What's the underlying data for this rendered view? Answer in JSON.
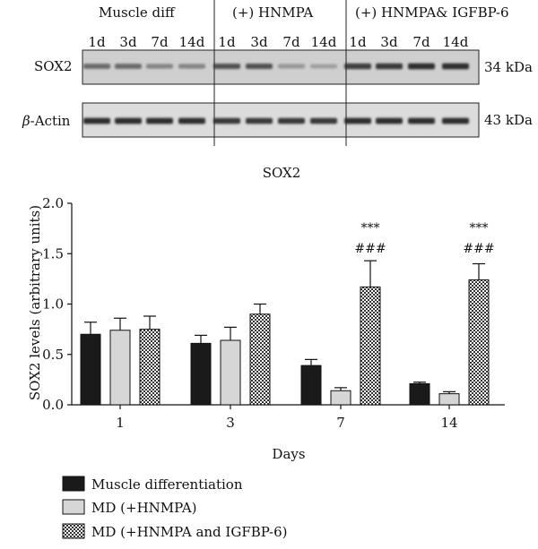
{
  "blot": {
    "groups": [
      "Muscle diff",
      "(+) HNMPA",
      "(+) HNMPA& IGFBP-6"
    ],
    "lanes": [
      "1d",
      "3d",
      "7d",
      "14d",
      "1d",
      "3d",
      "7d",
      "14d",
      "1d",
      "3d",
      "7d",
      "14d"
    ],
    "rows": [
      {
        "label": "SOX2",
        "size": "34 kDa",
        "band_intensity": [
          0.55,
          0.55,
          0.4,
          0.4,
          0.7,
          0.7,
          0.3,
          0.25,
          0.8,
          0.85,
          0.9,
          0.9
        ]
      },
      {
        "label_prefix": "β",
        "label": "-Actin",
        "size": "43 kDa",
        "band_intensity": [
          0.9,
          0.9,
          0.9,
          0.9,
          0.85,
          0.85,
          0.85,
          0.85,
          0.9,
          0.9,
          0.9,
          0.9
        ]
      }
    ]
  },
  "chart_data": {
    "type": "bar",
    "title": "SOX2",
    "xlabel": "Days",
    "ylabel": "SOX2 levels (arbitrary units)",
    "categories": [
      "1",
      "3",
      "7",
      "14"
    ],
    "ylim": [
      0,
      2.0
    ],
    "yticks": [
      "0.0",
      "0.5",
      "1.0",
      "1.5",
      "2.0"
    ],
    "series": [
      {
        "name": "Muscle differentiation",
        "color": "#1a1a1a",
        "pattern": "solid-dark",
        "values": [
          0.7,
          0.61,
          0.39,
          0.21
        ],
        "errors": [
          0.12,
          0.08,
          0.06,
          0.015
        ]
      },
      {
        "name": "MD (+HNMPA)",
        "color": "#d6d6d6",
        "pattern": "solid-light",
        "values": [
          0.74,
          0.64,
          0.14,
          0.11
        ],
        "errors": [
          0.12,
          0.13,
          0.03,
          0.02
        ]
      },
      {
        "name": "MD (+HNMPA and IGFBP-6)",
        "color": "#555555",
        "pattern": "checkered",
        "values": [
          0.75,
          0.9,
          1.17,
          1.24
        ],
        "errors": [
          0.13,
          0.1,
          0.26,
          0.16
        ]
      }
    ],
    "annotations": [
      {
        "category": "7",
        "series": 2,
        "lines": [
          "***",
          "###"
        ]
      },
      {
        "category": "14",
        "series": 2,
        "lines": [
          "***",
          "###"
        ]
      }
    ],
    "legend_position": "bottom-left",
    "grid": false
  }
}
